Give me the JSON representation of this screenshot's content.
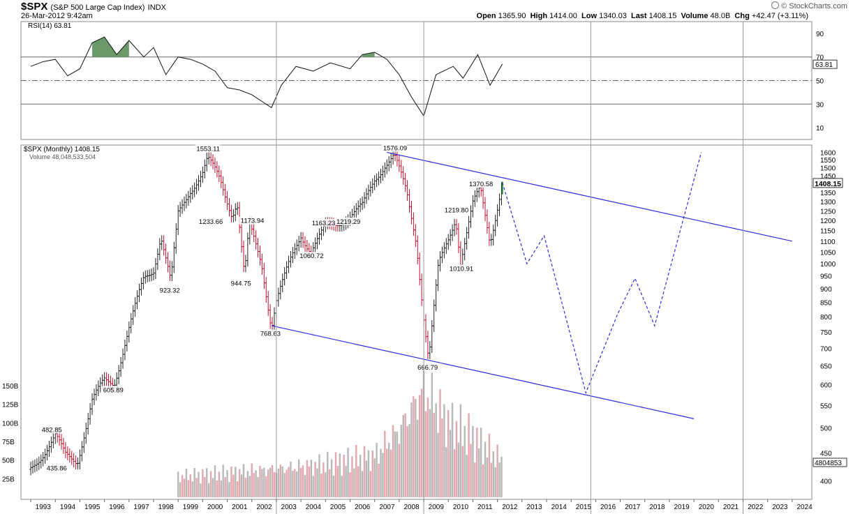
{
  "header": {
    "symbol": "$SPX",
    "name": "(S&P 500 Large Cap Index)",
    "exchange": "INDX",
    "datetime": "26-Mar-2012 9:42am",
    "watermark": "© StockCharts.com",
    "ohlc": {
      "open_label": "Open",
      "open": "1365.90",
      "high_label": "High",
      "high": "1414.00",
      "low_label": "Low",
      "low": "1340.03",
      "last_label": "Last",
      "last": "1408.15",
      "volume_label": "Volume",
      "volume": "48.0B",
      "chg_label": "Chg",
      "chg": "+42.47 (+3.11%)"
    }
  },
  "rsi_panel": {
    "legend": "RSI(14) 63.81",
    "current": "63.81",
    "ticks": [
      "90",
      "70",
      "50",
      "30",
      "10"
    ],
    "overbought": 70,
    "oversold": 30,
    "range": [
      0,
      100
    ]
  },
  "price_panel": {
    "legend": "$SPX (Monthly) 1408.15",
    "volume_legend": "Volume 48,048,533,504",
    "last_price": "1408.15",
    "last_volume": "4804853",
    "price_ticks": [
      "1600",
      "1550",
      "1500",
      "1450",
      "1400",
      "1350",
      "1300",
      "1250",
      "1200",
      "1150",
      "1100",
      "1050",
      "1000",
      "950",
      "900",
      "850",
      "800",
      "750",
      "700",
      "650",
      "600",
      "550",
      "500",
      "450",
      "400"
    ],
    "volume_ticks": [
      "150B",
      "125B",
      "100B",
      "75B",
      "50B",
      "25B"
    ],
    "annotations": [
      "1553.11",
      "1233.66",
      "923.32",
      "1173.94",
      "944.75",
      "768.63",
      "1163.23",
      "1060.72",
      "1219.29",
      "1576.09",
      "666.79",
      "1219.80",
      "1010.91",
      "1370.58",
      "605.89",
      "482.85",
      "435.86"
    ]
  },
  "x_axis": {
    "years": [
      "1993",
      "1994",
      "1995",
      "1996",
      "1997",
      "1998",
      "1999",
      "2000",
      "2001",
      "2002",
      "2003",
      "2004",
      "2005",
      "2006",
      "2007",
      "2008",
      "2009",
      "2010",
      "2011",
      "2012",
      "2013",
      "2014",
      "2015",
      "2016",
      "2017",
      "2018",
      "2019",
      "2020",
      "2021",
      "2022",
      "2023",
      "2024"
    ]
  },
  "chart_data": {
    "type": "line",
    "title": "$SPX (S&P 500 Large Cap Index) INDX",
    "scale": "log",
    "ylim": [
      370,
      1650
    ],
    "price_path": [
      [
        1993.0,
        420
      ],
      [
        1993.5,
        450
      ],
      [
        1994.0,
        482.85
      ],
      [
        1994.4,
        445
      ],
      [
        1994.9,
        435.86
      ],
      [
        1995.5,
        560
      ],
      [
        1996.0,
        610
      ],
      [
        1996.4,
        605.89
      ],
      [
        1997.0,
        760
      ],
      [
        1997.6,
        940
      ],
      [
        1998.0,
        980
      ],
      [
        1998.3,
        1130
      ],
      [
        1998.7,
        923.32
      ],
      [
        1999.0,
        1230
      ],
      [
        1999.5,
        1370
      ],
      [
        2000.0,
        1469
      ],
      [
        2000.2,
        1553.11
      ],
      [
        2000.7,
        1430
      ],
      [
        2001.2,
        1233.66
      ],
      [
        2001.4,
        1300
      ],
      [
        2001.7,
        944.75
      ],
      [
        2001.9,
        1173.94
      ],
      [
        2002.4,
        1000
      ],
      [
        2002.8,
        768.63
      ],
      [
        2003.0,
        860
      ],
      [
        2003.5,
        990
      ],
      [
        2004.0,
        1130
      ],
      [
        2004.4,
        1060.72
      ],
      [
        2005.0,
        1163.23
      ],
      [
        2005.4,
        1180
      ],
      [
        2005.9,
        1219.29
      ],
      [
        2006.5,
        1270
      ],
      [
        2007.0,
        1430
      ],
      [
        2007.4,
        1520
      ],
      [
        2007.8,
        1576.09
      ],
      [
        2008.3,
        1350
      ],
      [
        2008.7,
        1100
      ],
      [
        2009.0,
        800
      ],
      [
        2009.2,
        666.79
      ],
      [
        2009.6,
        990
      ],
      [
        2010.0,
        1110
      ],
      [
        2010.3,
        1219.8
      ],
      [
        2010.5,
        1010.91
      ],
      [
        2011.0,
        1280
      ],
      [
        2011.3,
        1370.58
      ],
      [
        2011.7,
        1100
      ],
      [
        2012.2,
        1408.15
      ]
    ],
    "projection": [
      [
        2012.2,
        1408.15
      ],
      [
        2013.2,
        1000
      ],
      [
        2013.9,
        1125
      ],
      [
        2015.6,
        580
      ],
      [
        2016.9,
        810
      ],
      [
        2017.6,
        940
      ],
      [
        2018.4,
        770
      ],
      [
        2020.3,
        1600
      ]
    ],
    "trendlines": [
      {
        "from": [
          2007.5,
          1600
        ],
        "to": [
          2024.0,
          1100
        ]
      },
      {
        "from": [
          2002.8,
          770
        ],
        "to": [
          2020.0,
          520
        ]
      }
    ],
    "rsi_path": [
      [
        1993.0,
        62
      ],
      [
        1993.5,
        66
      ],
      [
        1994.0,
        68
      ],
      [
        1994.5,
        54
      ],
      [
        1995.0,
        60
      ],
      [
        1995.5,
        82
      ],
      [
        1996.0,
        87
      ],
      [
        1996.5,
        72
      ],
      [
        1997.0,
        84
      ],
      [
        1997.6,
        70
      ],
      [
        1998.0,
        78
      ],
      [
        1998.5,
        55
      ],
      [
        1999.0,
        70
      ],
      [
        1999.5,
        68
      ],
      [
        2000.0,
        64
      ],
      [
        2000.5,
        58
      ],
      [
        2001.0,
        44
      ],
      [
        2001.5,
        42
      ],
      [
        2002.0,
        38
      ],
      [
        2002.8,
        27
      ],
      [
        2003.2,
        46
      ],
      [
        2003.8,
        62
      ],
      [
        2004.5,
        58
      ],
      [
        2005.2,
        65
      ],
      [
        2006.0,
        60
      ],
      [
        2006.5,
        72
      ],
      [
        2007.0,
        74
      ],
      [
        2007.5,
        68
      ],
      [
        2008.0,
        55
      ],
      [
        2008.5,
        36
      ],
      [
        2009.0,
        20
      ],
      [
        2009.5,
        55
      ],
      [
        2010.2,
        62
      ],
      [
        2010.6,
        52
      ],
      [
        2011.2,
        72
      ],
      [
        2011.7,
        46
      ],
      [
        2012.2,
        64
      ]
    ],
    "volume_path": [
      [
        1999.0,
        28
      ],
      [
        2001.0,
        32
      ],
      [
        2003.0,
        38
      ],
      [
        2005.0,
        44
      ],
      [
        2007.0,
        55
      ],
      [
        2008.0,
        90
      ],
      [
        2009.0,
        145
      ],
      [
        2010.0,
        100
      ],
      [
        2011.0,
        80
      ],
      [
        2012.2,
        48
      ]
    ]
  }
}
